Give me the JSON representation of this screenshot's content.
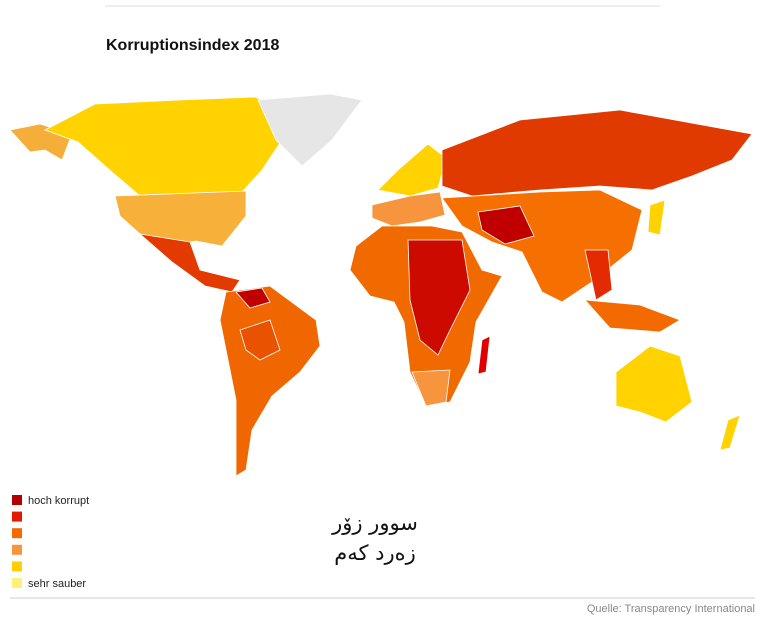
{
  "title": "Korruptionsindex 2018",
  "legend": [
    {
      "label": "hoch korrupt",
      "color": "#b30000"
    },
    {
      "color": "#e31a00"
    },
    {
      "color": "#f26a00"
    },
    {
      "color": "#f7943e"
    },
    {
      "color": "#ffd000"
    },
    {
      "label": "sehr sauber",
      "color": "#fff07a"
    }
  ],
  "annotation": [
    "سوور زۆر",
    "زەرد کەم"
  ],
  "source": "Quelle: Transparency International"
}
